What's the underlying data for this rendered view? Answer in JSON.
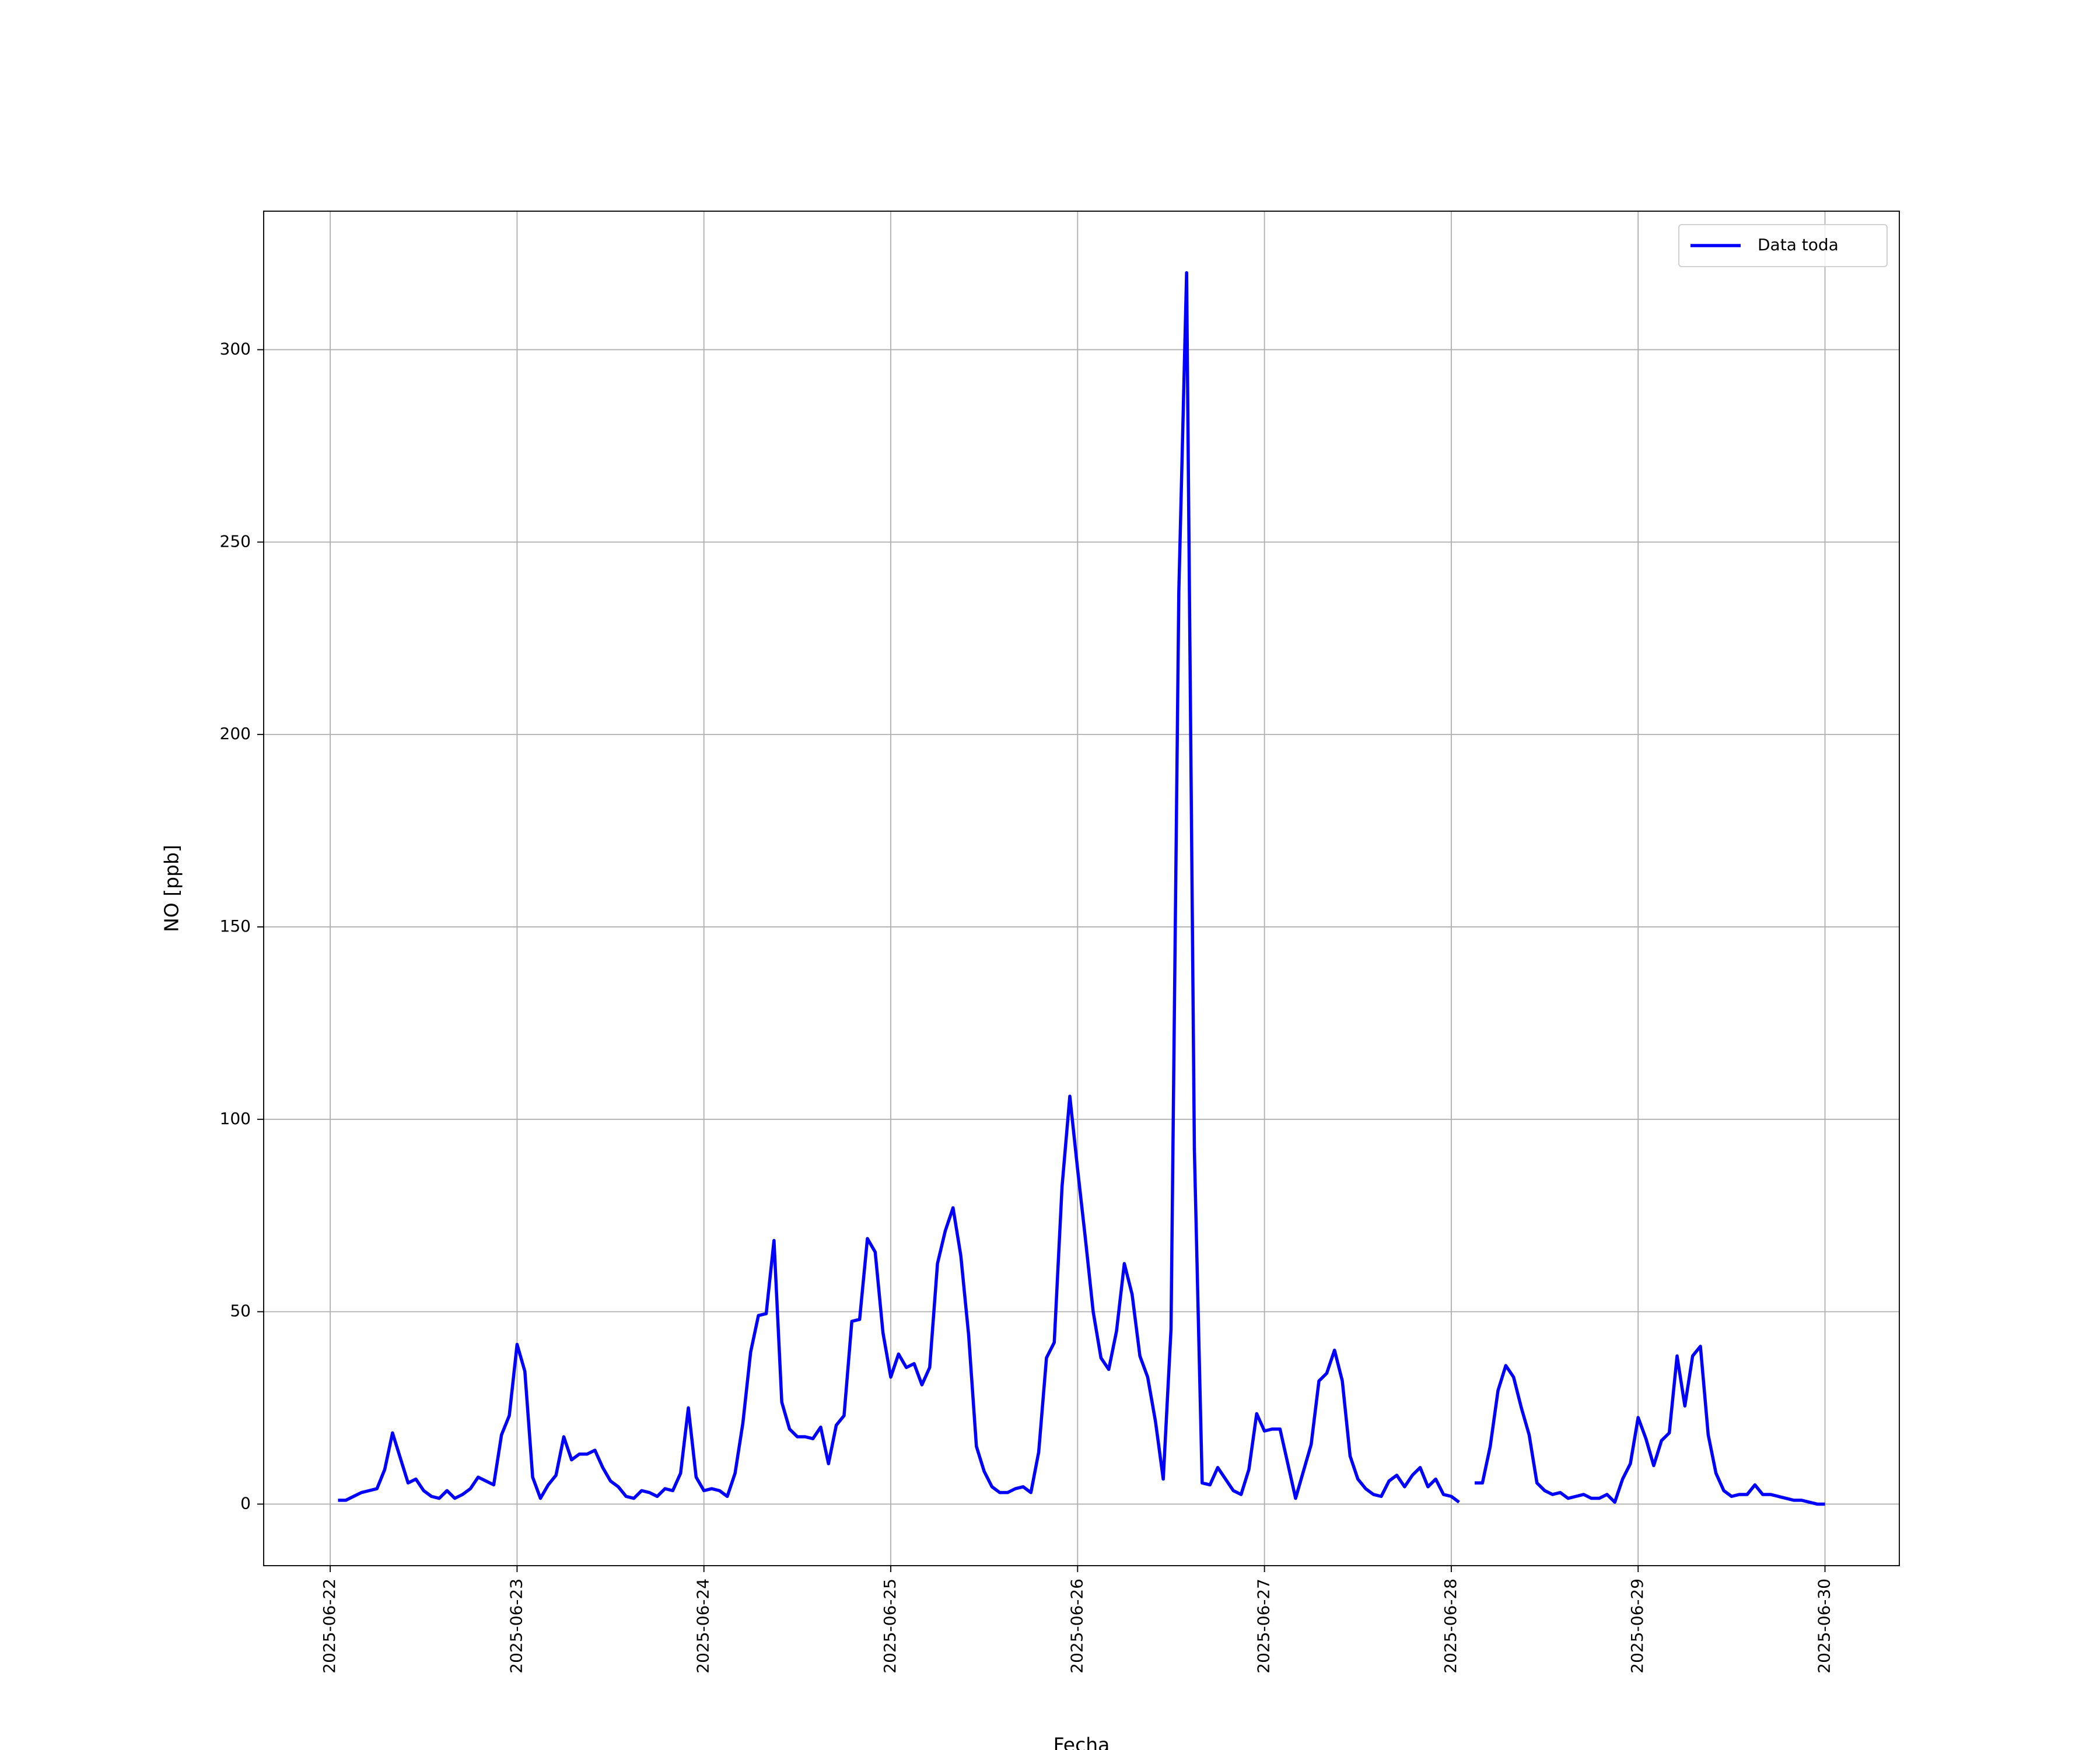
{
  "chart_data": {
    "type": "line",
    "xlabel": "Fecha",
    "ylabel": "NO [ppb]",
    "x": [
      "2025-06-22 01:00",
      "2025-06-22 02:00",
      "2025-06-22 03:00",
      "2025-06-22 04:00",
      "2025-06-22 05:00",
      "2025-06-22 06:00",
      "2025-06-22 07:00",
      "2025-06-22 08:00",
      "2025-06-22 09:00",
      "2025-06-22 10:00",
      "2025-06-22 11:00",
      "2025-06-22 12:00",
      "2025-06-22 13:00",
      "2025-06-22 14:00",
      "2025-06-22 15:00",
      "2025-06-22 16:00",
      "2025-06-22 17:00",
      "2025-06-22 18:00",
      "2025-06-22 19:00",
      "2025-06-22 20:00",
      "2025-06-22 21:00",
      "2025-06-22 22:00",
      "2025-06-22 23:00",
      "2025-06-23 00:00",
      "2025-06-23 01:00",
      "2025-06-23 02:00",
      "2025-06-23 03:00",
      "2025-06-23 04:00",
      "2025-06-23 05:00",
      "2025-06-23 06:00",
      "2025-06-23 07:00",
      "2025-06-23 08:00",
      "2025-06-23 09:00",
      "2025-06-23 10:00",
      "2025-06-23 11:00",
      "2025-06-23 12:00",
      "2025-06-23 13:00",
      "2025-06-23 14:00",
      "2025-06-23 15:00",
      "2025-06-23 16:00",
      "2025-06-23 17:00",
      "2025-06-23 18:00",
      "2025-06-23 19:00",
      "2025-06-23 20:00",
      "2025-06-23 21:00",
      "2025-06-23 22:00",
      "2025-06-23 23:00",
      "2025-06-24 00:00",
      "2025-06-24 01:00",
      "2025-06-24 02:00",
      "2025-06-24 03:00",
      "2025-06-24 04:00",
      "2025-06-24 05:00",
      "2025-06-24 06:00",
      "2025-06-24 07:00",
      "2025-06-24 08:00",
      "2025-06-24 09:00",
      "2025-06-24 10:00",
      "2025-06-24 11:00",
      "2025-06-24 12:00",
      "2025-06-24 13:00",
      "2025-06-24 14:00",
      "2025-06-24 15:00",
      "2025-06-24 16:00",
      "2025-06-24 17:00",
      "2025-06-24 18:00",
      "2025-06-24 19:00",
      "2025-06-24 20:00",
      "2025-06-24 21:00",
      "2025-06-24 22:00",
      "2025-06-24 23:00",
      "2025-06-25 00:00",
      "2025-06-25 01:00",
      "2025-06-25 02:00",
      "2025-06-25 03:00",
      "2025-06-25 04:00",
      "2025-06-25 05:00",
      "2025-06-25 06:00",
      "2025-06-25 07:00",
      "2025-06-25 08:00",
      "2025-06-25 09:00",
      "2025-06-25 10:00",
      "2025-06-25 11:00",
      "2025-06-25 12:00",
      "2025-06-25 13:00",
      "2025-06-25 14:00",
      "2025-06-25 15:00",
      "2025-06-25 16:00",
      "2025-06-25 17:00",
      "2025-06-25 18:00",
      "2025-06-25 19:00",
      "2025-06-25 20:00",
      "2025-06-25 21:00",
      "2025-06-25 22:00",
      "2025-06-25 23:00",
      "2025-06-26 00:00",
      "2025-06-26 01:00",
      "2025-06-26 02:00",
      "2025-06-26 03:00",
      "2025-06-26 04:00",
      "2025-06-26 05:00",
      "2025-06-26 06:00",
      "2025-06-26 07:00",
      "2025-06-26 08:00",
      "2025-06-26 09:00",
      "2025-06-26 10:00",
      "2025-06-26 11:00",
      "2025-06-26 12:00",
      "2025-06-26 13:00",
      "2025-06-26 14:00",
      "2025-06-26 15:00",
      "2025-06-26 16:00",
      "2025-06-26 17:00",
      "2025-06-26 18:00",
      "2025-06-26 19:00",
      "2025-06-26 20:00",
      "2025-06-26 21:00",
      "2025-06-26 22:00",
      "2025-06-26 23:00",
      "2025-06-27 00:00",
      "2025-06-27 01:00",
      "2025-06-27 02:00",
      "2025-06-27 03:00",
      "2025-06-27 04:00",
      "2025-06-27 05:00",
      "2025-06-27 06:00",
      "2025-06-27 07:00",
      "2025-06-27 08:00",
      "2025-06-27 09:00",
      "2025-06-27 10:00",
      "2025-06-27 11:00",
      "2025-06-27 12:00",
      "2025-06-27 13:00",
      "2025-06-27 14:00",
      "2025-06-27 15:00",
      "2025-06-27 16:00",
      "2025-06-27 17:00",
      "2025-06-27 18:00",
      "2025-06-27 19:00",
      "2025-06-27 20:00",
      "2025-06-27 21:00",
      "2025-06-27 22:00",
      "2025-06-27 23:00",
      "2025-06-28 00:00",
      "2025-06-28 01:00",
      "2025-06-28 02:00",
      "2025-06-28 03:00",
      "2025-06-28 04:00",
      "2025-06-28 05:00",
      "2025-06-28 06:00",
      "2025-06-28 07:00",
      "2025-06-28 08:00",
      "2025-06-28 09:00",
      "2025-06-28 10:00",
      "2025-06-28 11:00",
      "2025-06-28 12:00",
      "2025-06-28 13:00",
      "2025-06-28 14:00",
      "2025-06-28 15:00",
      "2025-06-28 16:00",
      "2025-06-28 17:00",
      "2025-06-28 18:00",
      "2025-06-28 19:00",
      "2025-06-28 20:00",
      "2025-06-28 21:00",
      "2025-06-28 22:00",
      "2025-06-28 23:00",
      "2025-06-29 00:00",
      "2025-06-29 01:00",
      "2025-06-29 02:00",
      "2025-06-29 03:00",
      "2025-06-29 04:00",
      "2025-06-29 05:00",
      "2025-06-29 06:00",
      "2025-06-29 07:00",
      "2025-06-29 08:00",
      "2025-06-29 09:00",
      "2025-06-29 10:00",
      "2025-06-29 11:00",
      "2025-06-29 12:00",
      "2025-06-29 13:00",
      "2025-06-29 14:00",
      "2025-06-29 15:00",
      "2025-06-29 16:00",
      "2025-06-29 17:00",
      "2025-06-29 18:00",
      "2025-06-29 19:00",
      "2025-06-29 20:00",
      "2025-06-29 21:00",
      "2025-06-29 22:00",
      "2025-06-29 23:00",
      "2025-06-30 00:00"
    ],
    "series": [
      {
        "name": "Data toda",
        "color": "#0000ff",
        "values": [
          1,
          1,
          2,
          3,
          3.5,
          4,
          9,
          18.5,
          12,
          5.5,
          6.5,
          3.5,
          2,
          1.5,
          3.5,
          1.5,
          2.5,
          4,
          7,
          6,
          5,
          18,
          23,
          41.5,
          34.5,
          7,
          1.5,
          5,
          7.5,
          17.5,
          11.5,
          13,
          13,
          14,
          9.5,
          6,
          4.5,
          2,
          1.5,
          3.5,
          3,
          2,
          4,
          3.5,
          8,
          25,
          7,
          3.5,
          4,
          3.5,
          2,
          8,
          21,
          39.5,
          49,
          49.5,
          68.5,
          26.5,
          19.5,
          17.5,
          17.5,
          17,
          20,
          10.5,
          20.5,
          23,
          47.5,
          48,
          69,
          65.5,
          44.5,
          33,
          39,
          35.5,
          36.5,
          31,
          35.5,
          62.5,
          71,
          77,
          64.5,
          44,
          15,
          8.5,
          4.5,
          3,
          3,
          4,
          4.5,
          3,
          13.5,
          38,
          42,
          82.5,
          106,
          87,
          69,
          50,
          38,
          35,
          45,
          62.5,
          54.5,
          38.5,
          33,
          21.5,
          6.5,
          45.5,
          237,
          320,
          92,
          5.5,
          5,
          9.5,
          6.5,
          3.5,
          2.5,
          9,
          23.5,
          19,
          19.5,
          19.5,
          10.5,
          1.5,
          8.5,
          15.5,
          32,
          34,
          40,
          32,
          12.5,
          6.5,
          4,
          2.5,
          2,
          6,
          7.5,
          4.5,
          7.5,
          9.5,
          4.5,
          6.5,
          2.5,
          2,
          0.5,
          null,
          5.5,
          5.5,
          15,
          29.5,
          36,
          33,
          25,
          18,
          5.5,
          3.5,
          2.5,
          3,
          1.5,
          2,
          2.5,
          1.5,
          1.5,
          2.5,
          0.5,
          6.5,
          10.5,
          22.5,
          17,
          10,
          16.5,
          18.5,
          38.5,
          25.5,
          38.5,
          41,
          18,
          8,
          3.5,
          2,
          2.5,
          2.5,
          5,
          2.5,
          2.5,
          2,
          1.5,
          1,
          1,
          0.5,
          0,
          0
        ]
      }
    ],
    "xlim": [
      "2025-06-21 15:27",
      "2025-06-30 09:33"
    ],
    "xticks": [
      "2025-06-22",
      "2025-06-23",
      "2025-06-24",
      "2025-06-25",
      "2025-06-26",
      "2025-06-27",
      "2025-06-28",
      "2025-06-29",
      "2025-06-30"
    ],
    "ylim": [
      -16,
      336
    ],
    "yticks": [
      0,
      50,
      100,
      150,
      200,
      250,
      300
    ],
    "grid": true,
    "legend": "upper right"
  }
}
